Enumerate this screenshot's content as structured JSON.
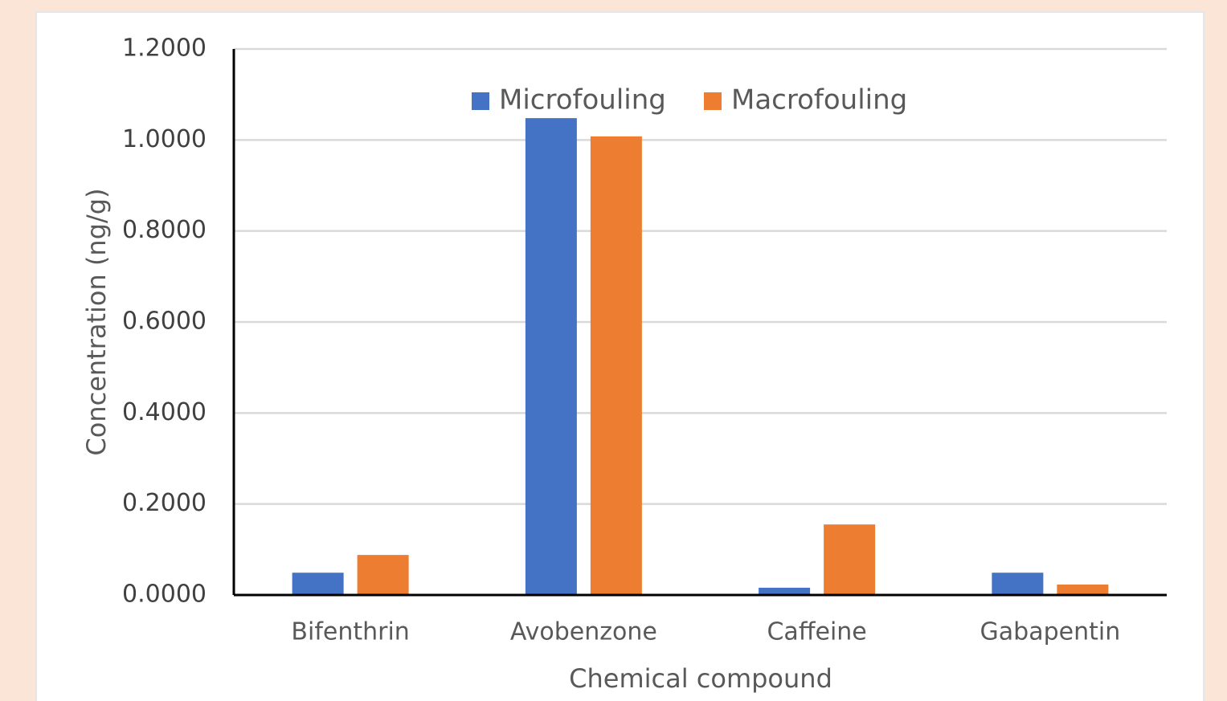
{
  "chart_data": {
    "type": "bar",
    "x_label": "Chemical compound",
    "y_label": "Concentration (ng/g)",
    "categories": [
      "Bifenthrin",
      "Avobenzone",
      "Caffeine",
      "Gabapentin"
    ],
    "series": [
      {
        "name": "Microfouling",
        "color": "#4472c4",
        "values": [
          0.049,
          1.048,
          0.016,
          0.049
        ]
      },
      {
        "name": "Macrofouling",
        "color": "#ed7d31",
        "values": [
          0.088,
          1.008,
          0.155,
          0.023
        ]
      }
    ],
    "ylim": [
      0,
      1.2
    ],
    "yticks": [
      {
        "value": 0,
        "label": "0.0000"
      },
      {
        "value": 0.2,
        "label": "0.2000"
      },
      {
        "value": 0.4,
        "label": "0.4000"
      },
      {
        "value": 0.6,
        "label": "0.6000"
      },
      {
        "value": 0.8,
        "label": "0.8000"
      },
      {
        "value": 1.0,
        "label": "1.0000"
      },
      {
        "value": 1.2,
        "label": "1.2000"
      }
    ],
    "grid": true,
    "legend": "top"
  }
}
